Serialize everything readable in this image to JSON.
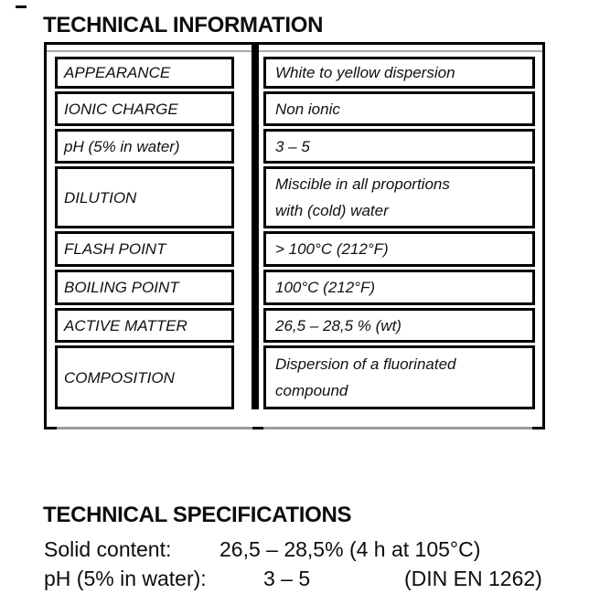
{
  "document": {
    "info_section": {
      "title": "TECHNICAL INFORMATION",
      "rows": [
        {
          "label": "APPEARANCE",
          "value": "White to yellow dispersion"
        },
        {
          "label": "IONIC CHARGE",
          "value": "Non ionic"
        },
        {
          "label": "pH (5% in water)",
          "value": "3 – 5"
        },
        {
          "label": "DILUTION",
          "value": "Miscible in all proportions\nwith (cold) water"
        },
        {
          "label": "FLASH POINT",
          "value": "> 100°C (212°F)"
        },
        {
          "label": "BOILING POINT",
          "value": "100°C (212°F)"
        },
        {
          "label": "ACTIVE MATTER",
          "value": "26,5 – 28,5 % (wt)"
        },
        {
          "label": "COMPOSITION",
          "value": "Dispersion of a fluorinated\ncompound"
        }
      ]
    },
    "specs_section": {
      "title": "TECHNICAL SPECIFICATIONS",
      "lines": [
        {
          "label": "Solid content:",
          "value": "26,5 – 28,5% (4 h at 105°C)",
          "standard": ""
        },
        {
          "label": "pH (5% in water):",
          "value": "3 – 5",
          "standard": "(DIN EN 1262)"
        }
      ]
    },
    "colors": {
      "border": "#000000",
      "faint_line": "#a0a0a0",
      "text": "#111111",
      "background": "#ffffff"
    }
  }
}
